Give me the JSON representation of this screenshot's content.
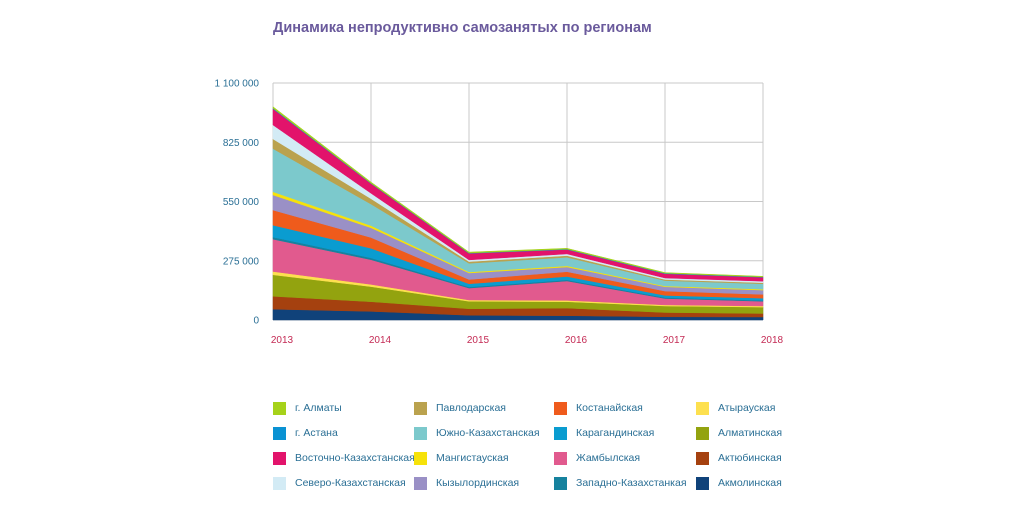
{
  "chart_data": {
    "type": "area",
    "stacked": true,
    "title": "Динамика непродуктивно самозанятых по регионам",
    "xlabel": "",
    "ylabel": "",
    "x": [
      "2013",
      "2014",
      "2015",
      "2016",
      "2017",
      "2018"
    ],
    "ylim": [
      0,
      1100000
    ],
    "yticks": [
      0,
      275000,
      550000,
      825000,
      1100000
    ],
    "ytick_labels": [
      "0",
      "275 000",
      "550 000",
      "825 000",
      "1 100 000"
    ],
    "grid": true,
    "legend_position": "bottom",
    "series": [
      {
        "name": "Акмолинская",
        "color": "#10427a",
        "values": [
          50000,
          40000,
          22000,
          20000,
          15000,
          14000
        ]
      },
      {
        "name": "Актюбинская",
        "color": "#a5410f",
        "values": [
          60000,
          45000,
          30000,
          35000,
          20000,
          16000
        ]
      },
      {
        "name": "Алматинская",
        "color": "#93a30f",
        "values": [
          100000,
          70000,
          35000,
          30000,
          30000,
          30000
        ]
      },
      {
        "name": "Атырауская",
        "color": "#fde04f",
        "values": [
          15000,
          10000,
          6000,
          6000,
          5000,
          5000
        ]
      },
      {
        "name": "Жамбылская",
        "color": "#e15a8e",
        "values": [
          150000,
          115000,
          55000,
          90000,
          30000,
          22000
        ]
      },
      {
        "name": "Западно-Казахстанкая",
        "color": "#16829e",
        "values": [
          10000,
          8000,
          5000,
          5000,
          4000,
          4000
        ]
      },
      {
        "name": "Карагандинская",
        "color": "#0a9cd0",
        "values": [
          55000,
          45000,
          15000,
          16000,
          10000,
          10000
        ]
      },
      {
        "name": "Костанайская",
        "color": "#ef5b1c",
        "values": [
          70000,
          50000,
          20000,
          22000,
          20000,
          18000
        ]
      },
      {
        "name": "Кызылординская",
        "color": "#9a90c6",
        "values": [
          70000,
          45000,
          30000,
          22000,
          20000,
          20000
        ]
      },
      {
        "name": "Мангистауская",
        "color": "#f6e20a",
        "values": [
          15000,
          10000,
          5000,
          5000,
          4000,
          4000
        ]
      },
      {
        "name": "Южно-Казахстанская",
        "color": "#7cc9cc",
        "values": [
          200000,
          100000,
          40000,
          40000,
          25000,
          25000
        ]
      },
      {
        "name": "Павлодарская",
        "color": "#baa24e",
        "values": [
          45000,
          25000,
          8000,
          8000,
          5000,
          5000
        ]
      },
      {
        "name": "Северо-Казахстанская",
        "color": "#d3ebf5",
        "values": [
          65000,
          25000,
          8000,
          8000,
          7000,
          7000
        ]
      },
      {
        "name": "Восточно-Казахстанская",
        "color": "#e2136b",
        "values": [
          75000,
          45000,
          30000,
          20000,
          20000,
          18000
        ]
      },
      {
        "name": "г. Астана",
        "color": "#0a92d3",
        "values": [
          3000,
          2000,
          2000,
          2000,
          2000,
          2000
        ]
      },
      {
        "name": "г. Алматы",
        "color": "#a6d21a",
        "values": [
          7000,
          5000,
          4000,
          4000,
          3000,
          3000
        ]
      }
    ],
    "legend": [
      {
        "name": "г. Алматы",
        "color": "#a6d21a"
      },
      {
        "name": "Павлодарская",
        "color": "#baa24e"
      },
      {
        "name": "Костанайская",
        "color": "#ef5b1c"
      },
      {
        "name": "Атырауская",
        "color": "#fde04f"
      },
      {
        "name": "г. Астана",
        "color": "#0a92d3"
      },
      {
        "name": "Южно-Казахстанская",
        "color": "#7cc9cc"
      },
      {
        "name": "Карагандинская",
        "color": "#0a9cd0"
      },
      {
        "name": "Алматинская",
        "color": "#93a30f"
      },
      {
        "name": "Восточно-Казахстанская",
        "color": "#e2136b"
      },
      {
        "name": "Мангистауская",
        "color": "#f6e20a"
      },
      {
        "name": "Жамбылская",
        "color": "#e15a8e"
      },
      {
        "name": "Актюбинская",
        "color": "#a5410f"
      },
      {
        "name": "Северо-Казахстанская",
        "color": "#d3ebf5"
      },
      {
        "name": "Кызылординская",
        "color": "#9a90c6"
      },
      {
        "name": "Западно-Казахстанкая",
        "color": "#16829e"
      },
      {
        "name": "Акмолинская",
        "color": "#10427a"
      }
    ],
    "colors": {
      "title": "#6a5a9c",
      "y_tick_labels": "#2a6f95",
      "x_tick_labels": "#c42a54",
      "legend_labels": "#2a6f95",
      "grid": "#c8c8c8"
    }
  }
}
